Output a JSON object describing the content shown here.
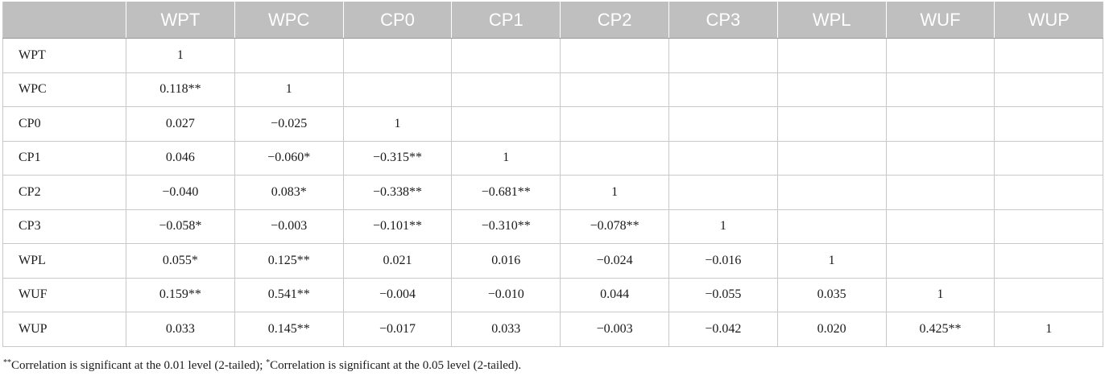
{
  "table": {
    "corner": "",
    "columns": [
      "WPT",
      "WPC",
      "CP0",
      "CP1",
      "CP2",
      "CP3",
      "WPL",
      "WUF",
      "WUP"
    ],
    "rows": [
      {
        "label": "WPT",
        "cells": [
          "1",
          "",
          "",
          "",
          "",
          "",
          "",
          "",
          ""
        ]
      },
      {
        "label": "WPC",
        "cells": [
          "0.118**",
          "1",
          "",
          "",
          "",
          "",
          "",
          "",
          ""
        ]
      },
      {
        "label": "CP0",
        "cells": [
          "0.027",
          "−0.025",
          "1",
          "",
          "",
          "",
          "",
          "",
          ""
        ]
      },
      {
        "label": "CP1",
        "cells": [
          "0.046",
          "−0.060*",
          "−0.315**",
          "1",
          "",
          "",
          "",
          "",
          ""
        ]
      },
      {
        "label": "CP2",
        "cells": [
          "−0.040",
          "0.083*",
          "−0.338**",
          "−0.681**",
          "1",
          "",
          "",
          "",
          ""
        ]
      },
      {
        "label": "CP3",
        "cells": [
          "−0.058*",
          "−0.003",
          "−0.101**",
          "−0.310**",
          "−0.078**",
          "1",
          "",
          "",
          ""
        ]
      },
      {
        "label": "WPL",
        "cells": [
          "0.055*",
          "0.125**",
          "0.021",
          "0.016",
          "−0.024",
          "−0.016",
          "1",
          "",
          ""
        ]
      },
      {
        "label": "WUF",
        "cells": [
          "0.159**",
          "0.541**",
          "−0.004",
          "−0.010",
          "0.044",
          "−0.055",
          "0.035",
          "1",
          ""
        ]
      },
      {
        "label": "WUP",
        "cells": [
          "0.033",
          "0.145**",
          "−0.017",
          "0.033",
          "−0.003",
          "−0.042",
          "0.020",
          "0.425**",
          "1"
        ]
      }
    ]
  },
  "footnote": {
    "mark1": "**",
    "text1": "Correlation is significant at the 0.01 level (2-tailed); ",
    "mark2": "*",
    "text2": "Correlation is significant at the 0.05 level (2-tailed)."
  },
  "colors": {
    "header_bg": "#bfbfbf",
    "header_text": "#ffffff",
    "grid": "#c8c8c8"
  }
}
